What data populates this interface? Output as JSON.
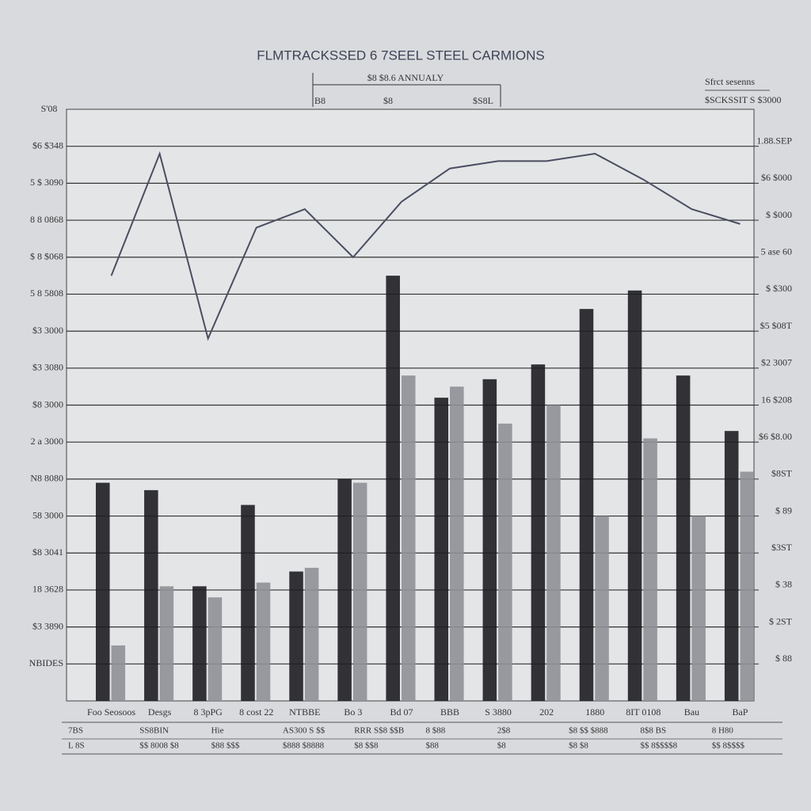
{
  "chart_data": {
    "type": "bar-line",
    "title": "FLMTRACKSSED 6 7SEEL STEEL CARMIONS",
    "categories": [
      "Foo Seosoos",
      "Desgs",
      "8 3pPG",
      "8 cost 22",
      "NTBBE",
      "Bo 3",
      "Bd 07",
      "BBB",
      "S 3880",
      "202",
      "1880",
      "8IT 0108",
      "Bau",
      "BaP"
    ],
    "series": [
      {
        "name": "Sfrct sesenns",
        "color": "#1e1e22",
        "kind": "bar",
        "values": [
          5.9,
          5.7,
          3.1,
          5.3,
          3.5,
          6.0,
          11.5,
          8.2,
          8.7,
          9.1,
          10.6,
          11.1,
          8.8,
          7.3
        ]
      },
      {
        "name": "$SCKSSIT S $3000",
        "color": "#8f9096",
        "kind": "bar",
        "values": [
          1.5,
          3.1,
          2.8,
          3.2,
          3.6,
          5.9,
          8.8,
          8.5,
          7.5,
          8.0,
          5.0,
          7.1,
          5.0,
          6.2
        ]
      },
      {
        "name": "$8 $8.6 ANNUALY",
        "color": "#4a4e60",
        "kind": "line",
        "values": [
          11.5,
          14.8,
          9.8,
          12.8,
          13.3,
          12.0,
          13.5,
          14.4,
          14.6,
          14.6,
          14.8,
          14.1,
          13.3,
          12.9
        ]
      }
    ],
    "ylim": [
      0,
      16
    ],
    "yticks": [
      {
        "value": 1,
        "label": "NBIDES"
      },
      {
        "value": 2,
        "label": "$3 3890"
      },
      {
        "value": 3,
        "label": "18 3628"
      },
      {
        "value": 4,
        "label": "$8 3041"
      },
      {
        "value": 5,
        "label": "58 3000"
      },
      {
        "value": 6,
        "label": "N8 8080"
      },
      {
        "value": 7,
        "label": "2 a 3000"
      },
      {
        "value": 8,
        "label": "$8 3000"
      },
      {
        "value": 9,
        "label": "$3 3080"
      },
      {
        "value": 10,
        "label": "$3 3000"
      },
      {
        "value": 11,
        "label": "5 8 5808"
      },
      {
        "value": 12,
        "label": "$ 8 $068"
      },
      {
        "value": 13,
        "label": "8 8 0868"
      },
      {
        "value": 14,
        "label": "5 $ 3090"
      },
      {
        "value": 15,
        "label": "$6 $348"
      }
    ],
    "y2lim": [
      0,
      16
    ],
    "y2ticks": [
      {
        "value": 1,
        "label": "$ 88"
      },
      {
        "value": 2,
        "label": "$ 2ST"
      },
      {
        "value": 3,
        "label": "$ 38"
      },
      {
        "value": 4,
        "label": "$3ST"
      },
      {
        "value": 5,
        "label": "$ 89"
      },
      {
        "value": 6,
        "label": "$8ST"
      },
      {
        "value": 7,
        "label": "$6 $8.00"
      },
      {
        "value": 8,
        "label": "16 $208"
      },
      {
        "value": 9,
        "label": "$2 3007"
      },
      {
        "value": 10,
        "label": "$5 $08T"
      },
      {
        "value": 11,
        "label": "$ $300"
      },
      {
        "value": 12,
        "label": "5 ase 60"
      },
      {
        "value": 13,
        "label": "$ $000"
      },
      {
        "value": 14,
        "label": "$6 $000"
      },
      {
        "value": 15,
        "label": "1.88.SEP"
      }
    ],
    "y_top_label": "S'08",
    "top_labels": [
      "B8",
      "$8",
      "$S8L"
    ],
    "grid": true,
    "legend": "top-right",
    "table": [
      [
        "7BS",
        "SS8BIN",
        "Hie",
        "AS300 S $$",
        "RRR S$8 $$B",
        "8 $88",
        "2$8",
        "$8 $$ $888",
        "8$8 BS",
        "8 H80"
      ],
      [
        "L 8S",
        "$$ 8008 $8",
        "$88 $$$",
        "$888 $8888",
        "$8 $$8",
        "$88",
        "$8",
        "$8 $8",
        "$$ 8$$$$8",
        "$$ 8$$$$"
      ]
    ]
  }
}
